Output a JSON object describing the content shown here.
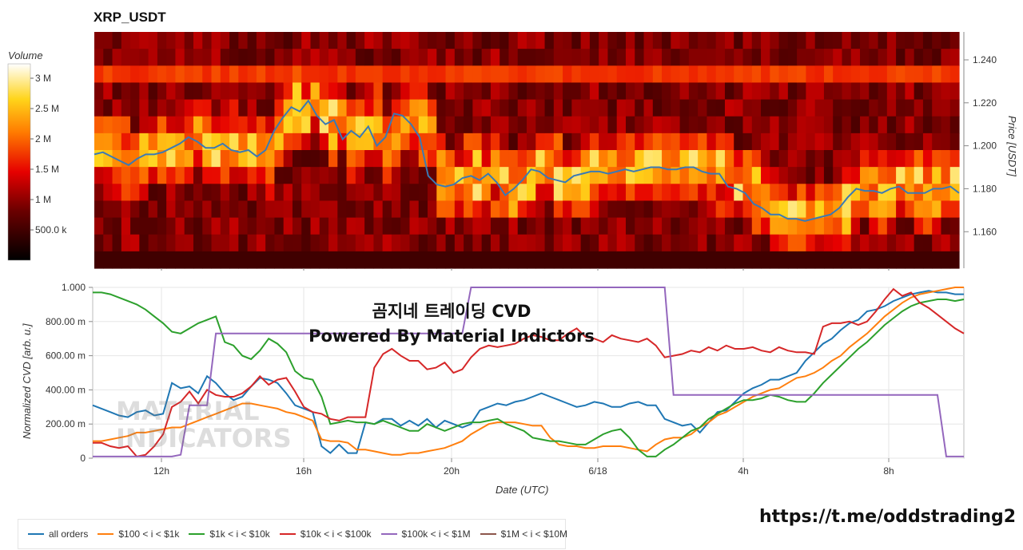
{
  "header": {
    "title": "XRP_USDT"
  },
  "overlay": {
    "line1": "곰지네 트레이딩 CVD",
    "line2": "Powered By Material Indictors"
  },
  "watermark": {
    "line1": "MATERIAL",
    "line2": "INDICATORS"
  },
  "footer": {
    "url": "https://t.me/oddstrading2"
  },
  "chart_data": [
    {
      "type": "heatmap",
      "colorbar": {
        "label": "Volume",
        "ticks": [
          "3 M",
          "2.5 M",
          "2 M",
          "1.5 M",
          "1 M",
          "500.0 k"
        ]
      },
      "y_axis": {
        "label": "Price [USDT]",
        "ticks": [
          "1.240",
          "1.220",
          "1.200",
          "1.180",
          "1.160"
        ],
        "range": [
          1.143,
          1.253
        ]
      },
      "x_axis": {
        "ticks": [
          "12h",
          "16h",
          "20h",
          "6/18",
          "4h",
          "8h"
        ]
      },
      "price_line_color": "#3a7ab5",
      "price_series": [
        1.196,
        1.197,
        1.195,
        1.193,
        1.191,
        1.194,
        1.196,
        1.196,
        1.197,
        1.199,
        1.201,
        1.204,
        1.202,
        1.199,
        1.199,
        1.201,
        1.198,
        1.197,
        1.198,
        1.195,
        1.198,
        1.207,
        1.213,
        1.218,
        1.216,
        1.221,
        1.214,
        1.21,
        1.212,
        1.203,
        1.207,
        1.204,
        1.209,
        1.2,
        1.204,
        1.215,
        1.214,
        1.21,
        1.204,
        1.186,
        1.182,
        1.181,
        1.182,
        1.185,
        1.186,
        1.184,
        1.187,
        1.183,
        1.177,
        1.18,
        1.184,
        1.189,
        1.188,
        1.185,
        1.184,
        1.183,
        1.186,
        1.187,
        1.188,
        1.188,
        1.187,
        1.188,
        1.189,
        1.188,
        1.189,
        1.19,
        1.19,
        1.189,
        1.189,
        1.19,
        1.19,
        1.188,
        1.187,
        1.187,
        1.181,
        1.18,
        1.178,
        1.173,
        1.171,
        1.168,
        1.168,
        1.166,
        1.166,
        1.165,
        1.166,
        1.167,
        1.168,
        1.171,
        1.176,
        1.18,
        1.179,
        1.179,
        1.178,
        1.18,
        1.181,
        1.178,
        1.178,
        1.178,
        1.18,
        1.18,
        1.181,
        1.178
      ]
    },
    {
      "type": "line",
      "ylabel": "Normalized CVD [arb. u.]",
      "xlabel": "Date (UTC)",
      "y_ticks": [
        "1.000",
        "800.00 m",
        "600.00 m",
        "400.00 m",
        "200.00 m",
        "0"
      ],
      "x_ticks": [
        "12h",
        "16h",
        "20h",
        "6/18",
        "4h",
        "8h"
      ],
      "ylim": [
        0,
        1
      ],
      "series": [
        {
          "name": "all orders",
          "color": "#1f77b4",
          "values": [
            0.31,
            0.29,
            0.27,
            0.25,
            0.24,
            0.27,
            0.28,
            0.25,
            0.26,
            0.44,
            0.41,
            0.42,
            0.38,
            0.48,
            0.44,
            0.38,
            0.34,
            0.36,
            0.42,
            0.47,
            0.46,
            0.44,
            0.38,
            0.31,
            0.29,
            0.27,
            0.07,
            0.03,
            0.08,
            0.03,
            0.03,
            0.21,
            0.2,
            0.23,
            0.23,
            0.19,
            0.22,
            0.19,
            0.23,
            0.18,
            0.22,
            0.2,
            0.18,
            0.2,
            0.28,
            0.3,
            0.32,
            0.31,
            0.33,
            0.34,
            0.36,
            0.38,
            0.36,
            0.34,
            0.32,
            0.3,
            0.31,
            0.33,
            0.32,
            0.3,
            0.3,
            0.32,
            0.33,
            0.31,
            0.31,
            0.23,
            0.21,
            0.19,
            0.2,
            0.15,
            0.21,
            0.27,
            0.28,
            0.33,
            0.38,
            0.41,
            0.43,
            0.46,
            0.46,
            0.48,
            0.5,
            0.57,
            0.62,
            0.67,
            0.7,
            0.75,
            0.79,
            0.81,
            0.86,
            0.87,
            0.89,
            0.92,
            0.94,
            0.96,
            0.97,
            0.98,
            0.97,
            0.97,
            0.96,
            0.96
          ]
        },
        {
          "name": "$100 < i < $1k",
          "color": "#ff7f0e",
          "values": [
            0.1,
            0.1,
            0.11,
            0.12,
            0.13,
            0.15,
            0.15,
            0.16,
            0.17,
            0.18,
            0.18,
            0.2,
            0.22,
            0.24,
            0.26,
            0.28,
            0.3,
            0.32,
            0.32,
            0.31,
            0.3,
            0.29,
            0.27,
            0.26,
            0.24,
            0.22,
            0.11,
            0.1,
            0.1,
            0.09,
            0.05,
            0.05,
            0.04,
            0.03,
            0.02,
            0.02,
            0.03,
            0.03,
            0.04,
            0.05,
            0.06,
            0.08,
            0.1,
            0.14,
            0.17,
            0.2,
            0.21,
            0.21,
            0.21,
            0.2,
            0.19,
            0.19,
            0.12,
            0.08,
            0.07,
            0.07,
            0.06,
            0.06,
            0.07,
            0.07,
            0.07,
            0.06,
            0.05,
            0.04,
            0.08,
            0.11,
            0.12,
            0.12,
            0.14,
            0.18,
            0.21,
            0.25,
            0.27,
            0.3,
            0.33,
            0.36,
            0.38,
            0.4,
            0.41,
            0.44,
            0.47,
            0.48,
            0.5,
            0.53,
            0.57,
            0.6,
            0.65,
            0.69,
            0.73,
            0.78,
            0.83,
            0.87,
            0.91,
            0.94,
            0.96,
            0.97,
            0.98,
            0.99,
            1.0,
            1.0
          ]
        },
        {
          "name": "$1k < i < $10k",
          "color": "#2ca02c",
          "values": [
            0.97,
            0.97,
            0.96,
            0.94,
            0.92,
            0.9,
            0.87,
            0.83,
            0.79,
            0.74,
            0.73,
            0.76,
            0.79,
            0.81,
            0.83,
            0.68,
            0.66,
            0.6,
            0.58,
            0.63,
            0.7,
            0.67,
            0.62,
            0.51,
            0.47,
            0.46,
            0.36,
            0.2,
            0.21,
            0.22,
            0.21,
            0.21,
            0.2,
            0.22,
            0.2,
            0.18,
            0.16,
            0.16,
            0.2,
            0.18,
            0.16,
            0.18,
            0.2,
            0.21,
            0.21,
            0.22,
            0.23,
            0.2,
            0.18,
            0.16,
            0.12,
            0.11,
            0.1,
            0.1,
            0.09,
            0.08,
            0.08,
            0.11,
            0.14,
            0.16,
            0.17,
            0.12,
            0.05,
            0.01,
            0.01,
            0.05,
            0.08,
            0.12,
            0.16,
            0.18,
            0.23,
            0.26,
            0.29,
            0.32,
            0.34,
            0.34,
            0.35,
            0.37,
            0.36,
            0.34,
            0.33,
            0.33,
            0.38,
            0.44,
            0.49,
            0.54,
            0.59,
            0.64,
            0.68,
            0.73,
            0.78,
            0.82,
            0.86,
            0.89,
            0.91,
            0.92,
            0.93,
            0.93,
            0.92,
            0.93
          ]
        },
        {
          "name": "$10k < i < $100k",
          "color": "#d62728",
          "values": [
            0.09,
            0.09,
            0.07,
            0.06,
            0.07,
            0.01,
            0.02,
            0.07,
            0.14,
            0.3,
            0.33,
            0.39,
            0.32,
            0.4,
            0.37,
            0.36,
            0.36,
            0.38,
            0.42,
            0.48,
            0.43,
            0.46,
            0.47,
            0.39,
            0.3,
            0.27,
            0.26,
            0.23,
            0.22,
            0.24,
            0.24,
            0.24,
            0.53,
            0.61,
            0.64,
            0.6,
            0.57,
            0.57,
            0.52,
            0.53,
            0.56,
            0.5,
            0.52,
            0.59,
            0.64,
            0.66,
            0.65,
            0.66,
            0.67,
            0.7,
            0.72,
            0.71,
            0.69,
            0.69,
            0.73,
            0.76,
            0.71,
            0.7,
            0.68,
            0.72,
            0.7,
            0.69,
            0.68,
            0.7,
            0.66,
            0.59,
            0.6,
            0.61,
            0.63,
            0.62,
            0.65,
            0.63,
            0.66,
            0.64,
            0.64,
            0.65,
            0.63,
            0.62,
            0.65,
            0.63,
            0.62,
            0.62,
            0.61,
            0.77,
            0.79,
            0.79,
            0.8,
            0.78,
            0.8,
            0.86,
            0.93,
            0.99,
            0.95,
            0.97,
            0.91,
            0.88,
            0.84,
            0.8,
            0.76,
            0.73
          ]
        },
        {
          "name": "$100k < i < $1M",
          "color": "#9467bd",
          "values": [
            0.01,
            0.01,
            0.01,
            0.01,
            0.01,
            0.01,
            0.01,
            0.01,
            0.01,
            0.01,
            0.02,
            0.31,
            0.31,
            0.31,
            0.73,
            0.73,
            0.73,
            0.73,
            0.73,
            0.73,
            0.73,
            0.73,
            0.73,
            0.73,
            0.73,
            0.73,
            0.73,
            0.73,
            0.73,
            0.73,
            0.73,
            0.73,
            0.73,
            0.73,
            0.73,
            0.73,
            0.73,
            0.73,
            0.73,
            0.73,
            0.73,
            0.73,
            0.73,
            1.0,
            1.0,
            1.0,
            1.0,
            1.0,
            1.0,
            1.0,
            1.0,
            1.0,
            1.0,
            1.0,
            1.0,
            1.0,
            1.0,
            1.0,
            1.0,
            1.0,
            1.0,
            1.0,
            1.0,
            1.0,
            1.0,
            1.0,
            0.37,
            0.37,
            0.37,
            0.37,
            0.37,
            0.37,
            0.37,
            0.37,
            0.37,
            0.37,
            0.37,
            0.37,
            0.37,
            0.37,
            0.37,
            0.37,
            0.37,
            0.37,
            0.37,
            0.37,
            0.37,
            0.37,
            0.37,
            0.37,
            0.37,
            0.37,
            0.37,
            0.37,
            0.37,
            0.37,
            0.37,
            0.01,
            0.01,
            0.01
          ]
        },
        {
          "name": "$1M < i < $10M",
          "color": "#8c564b",
          "values": []
        }
      ]
    }
  ]
}
